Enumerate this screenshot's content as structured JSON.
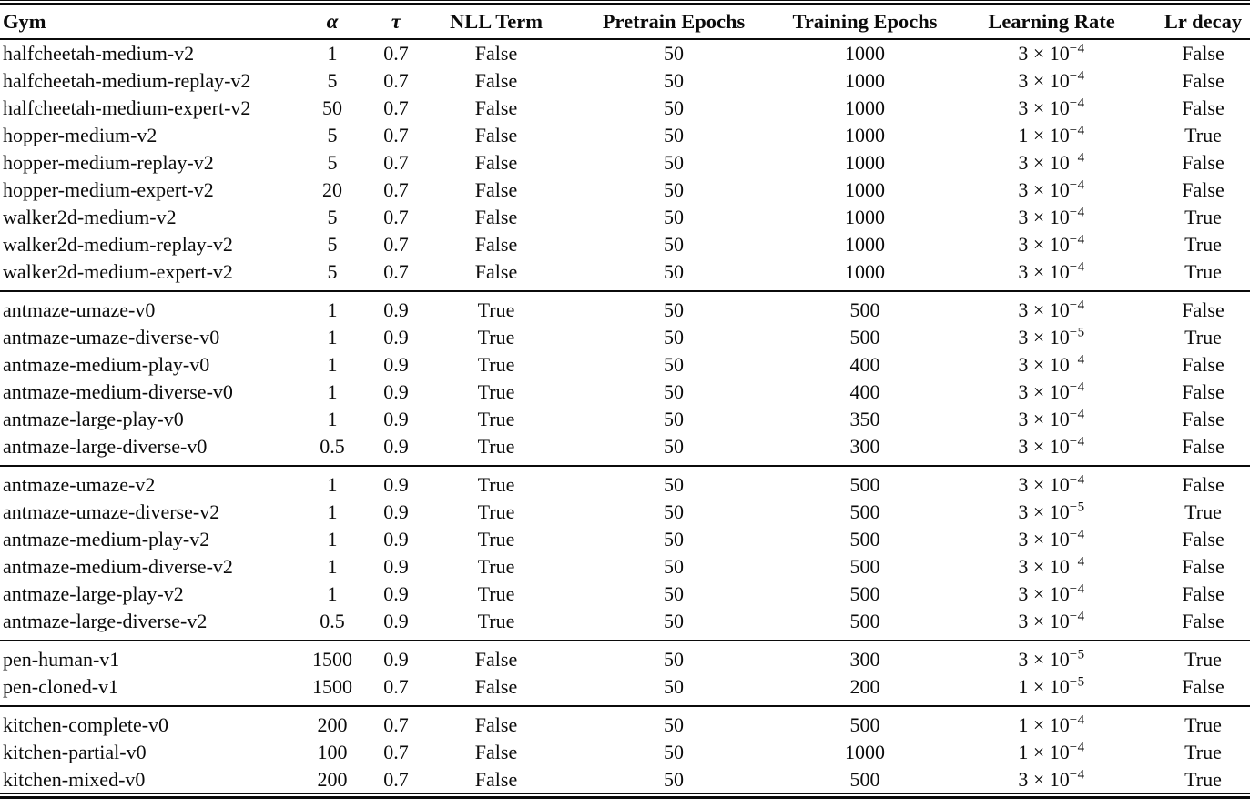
{
  "page": {
    "background_color": "#ffffff",
    "text_color": "#0b0b0b"
  },
  "table": {
    "columns": [
      {
        "key": "gym",
        "label": "Gym",
        "align": "left",
        "italic": false
      },
      {
        "key": "alpha",
        "label": "α",
        "align": "center",
        "italic": true
      },
      {
        "key": "tau",
        "label": "τ",
        "align": "center",
        "italic": true
      },
      {
        "key": "nll",
        "label": "NLL Term",
        "align": "center",
        "italic": false
      },
      {
        "key": "pretrain",
        "label": "Pretrain Epochs",
        "align": "center",
        "italic": false
      },
      {
        "key": "train",
        "label": "Training Epochs",
        "align": "center",
        "italic": false
      },
      {
        "key": "lr",
        "label": "Learning Rate",
        "align": "center",
        "italic": false
      },
      {
        "key": "lrdecay",
        "label": "Lr decay",
        "align": "center",
        "italic": false
      }
    ],
    "sections": [
      {
        "rows": [
          {
            "gym": "halfcheetah-medium-v2",
            "alpha": "1",
            "tau": "0.7",
            "nll": "False",
            "pretrain": "50",
            "train": "1000",
            "lr_base": "3 × 10",
            "lr_exp": "−4",
            "lrdecay": "False"
          },
          {
            "gym": "halfcheetah-medium-replay-v2",
            "alpha": "5",
            "tau": "0.7",
            "nll": "False",
            "pretrain": "50",
            "train": "1000",
            "lr_base": "3 × 10",
            "lr_exp": "−4",
            "lrdecay": "False"
          },
          {
            "gym": "halfcheetah-medium-expert-v2",
            "alpha": "50",
            "tau": "0.7",
            "nll": "False",
            "pretrain": "50",
            "train": "1000",
            "lr_base": "3 × 10",
            "lr_exp": "−4",
            "lrdecay": "False"
          },
          {
            "gym": "hopper-medium-v2",
            "alpha": "5",
            "tau": "0.7",
            "nll": "False",
            "pretrain": "50",
            "train": "1000",
            "lr_base": "1 × 10",
            "lr_exp": "−4",
            "lrdecay": "True"
          },
          {
            "gym": "hopper-medium-replay-v2",
            "alpha": "5",
            "tau": "0.7",
            "nll": "False",
            "pretrain": "50",
            "train": "1000",
            "lr_base": "3 × 10",
            "lr_exp": "−4",
            "lrdecay": "False"
          },
          {
            "gym": "hopper-medium-expert-v2",
            "alpha": "20",
            "tau": "0.7",
            "nll": "False",
            "pretrain": "50",
            "train": "1000",
            "lr_base": "3 × 10",
            "lr_exp": "−4",
            "lrdecay": "False"
          },
          {
            "gym": "walker2d-medium-v2",
            "alpha": "5",
            "tau": "0.7",
            "nll": "False",
            "pretrain": "50",
            "train": "1000",
            "lr_base": "3 × 10",
            "lr_exp": "−4",
            "lrdecay": "True"
          },
          {
            "gym": "walker2d-medium-replay-v2",
            "alpha": "5",
            "tau": "0.7",
            "nll": "False",
            "pretrain": "50",
            "train": "1000",
            "lr_base": "3 × 10",
            "lr_exp": "−4",
            "lrdecay": "True"
          },
          {
            "gym": "walker2d-medium-expert-v2",
            "alpha": "5",
            "tau": "0.7",
            "nll": "False",
            "pretrain": "50",
            "train": "1000",
            "lr_base": "3 × 10",
            "lr_exp": "−4",
            "lrdecay": "True"
          }
        ]
      },
      {
        "rows": [
          {
            "gym": "antmaze-umaze-v0",
            "alpha": "1",
            "tau": "0.9",
            "nll": "True",
            "pretrain": "50",
            "train": "500",
            "lr_base": "3 × 10",
            "lr_exp": "−4",
            "lrdecay": "False"
          },
          {
            "gym": "antmaze-umaze-diverse-v0",
            "alpha": "1",
            "tau": "0.9",
            "nll": "True",
            "pretrain": "50",
            "train": "500",
            "lr_base": "3 × 10",
            "lr_exp": "−5",
            "lrdecay": "True"
          },
          {
            "gym": "antmaze-medium-play-v0",
            "alpha": "1",
            "tau": "0.9",
            "nll": "True",
            "pretrain": "50",
            "train": "400",
            "lr_base": "3 × 10",
            "lr_exp": "−4",
            "lrdecay": "False"
          },
          {
            "gym": "antmaze-medium-diverse-v0",
            "alpha": "1",
            "tau": "0.9",
            "nll": "True",
            "pretrain": "50",
            "train": "400",
            "lr_base": "3 × 10",
            "lr_exp": "−4",
            "lrdecay": "False"
          },
          {
            "gym": "antmaze-large-play-v0",
            "alpha": "1",
            "tau": "0.9",
            "nll": "True",
            "pretrain": "50",
            "train": "350",
            "lr_base": "3 × 10",
            "lr_exp": "−4",
            "lrdecay": "False"
          },
          {
            "gym": "antmaze-large-diverse-v0",
            "alpha": "0.5",
            "tau": "0.9",
            "nll": "True",
            "pretrain": "50",
            "train": "300",
            "lr_base": "3 × 10",
            "lr_exp": "−4",
            "lrdecay": "False"
          }
        ]
      },
      {
        "rows": [
          {
            "gym": "antmaze-umaze-v2",
            "alpha": "1",
            "tau": "0.9",
            "nll": "True",
            "pretrain": "50",
            "train": "500",
            "lr_base": "3 × 10",
            "lr_exp": "−4",
            "lrdecay": "False"
          },
          {
            "gym": "antmaze-umaze-diverse-v2",
            "alpha": "1",
            "tau": "0.9",
            "nll": "True",
            "pretrain": "50",
            "train": "500",
            "lr_base": "3 × 10",
            "lr_exp": "−5",
            "lrdecay": "True"
          },
          {
            "gym": "antmaze-medium-play-v2",
            "alpha": "1",
            "tau": "0.9",
            "nll": "True",
            "pretrain": "50",
            "train": "500",
            "lr_base": "3 × 10",
            "lr_exp": "−4",
            "lrdecay": "False"
          },
          {
            "gym": "antmaze-medium-diverse-v2",
            "alpha": "1",
            "tau": "0.9",
            "nll": "True",
            "pretrain": "50",
            "train": "500",
            "lr_base": "3 × 10",
            "lr_exp": "−4",
            "lrdecay": "False"
          },
          {
            "gym": "antmaze-large-play-v2",
            "alpha": "1",
            "tau": "0.9",
            "nll": "True",
            "pretrain": "50",
            "train": "500",
            "lr_base": "3 × 10",
            "lr_exp": "−4",
            "lrdecay": "False"
          },
          {
            "gym": "antmaze-large-diverse-v2",
            "alpha": "0.5",
            "tau": "0.9",
            "nll": "True",
            "pretrain": "50",
            "train": "500",
            "lr_base": "3 × 10",
            "lr_exp": "−4",
            "lrdecay": "False"
          }
        ]
      },
      {
        "rows": [
          {
            "gym": "pen-human-v1",
            "alpha": "1500",
            "tau": "0.9",
            "nll": "False",
            "pretrain": "50",
            "train": "300",
            "lr_base": "3 × 10",
            "lr_exp": "−5",
            "lrdecay": "True"
          },
          {
            "gym": "pen-cloned-v1",
            "alpha": "1500",
            "tau": "0.7",
            "nll": "False",
            "pretrain": "50",
            "train": "200",
            "lr_base": "1 × 10",
            "lr_exp": "−5",
            "lrdecay": "False"
          }
        ]
      },
      {
        "rows": [
          {
            "gym": "kitchen-complete-v0",
            "alpha": "200",
            "tau": "0.7",
            "nll": "False",
            "pretrain": "50",
            "train": "500",
            "lr_base": "1 × 10",
            "lr_exp": "−4",
            "lrdecay": "True"
          },
          {
            "gym": "kitchen-partial-v0",
            "alpha": "100",
            "tau": "0.7",
            "nll": "False",
            "pretrain": "50",
            "train": "1000",
            "lr_base": "1 × 10",
            "lr_exp": "−4",
            "lrdecay": "True"
          },
          {
            "gym": "kitchen-mixed-v0",
            "alpha": "200",
            "tau": "0.7",
            "nll": "False",
            "pretrain": "50",
            "train": "500",
            "lr_base": "3 × 10",
            "lr_exp": "−4",
            "lrdecay": "True"
          }
        ]
      }
    ]
  }
}
